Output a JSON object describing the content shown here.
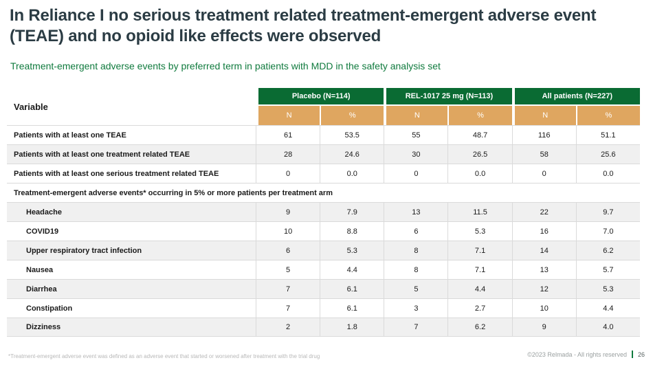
{
  "slide": {
    "title": "In Reliance I no serious treatment related treatment-emergent adverse event (TEAE) and no opioid like effects were observed",
    "subtitle": "Treatment-emergent adverse events by preferred term in patients with MDD in the safety analysis set"
  },
  "table": {
    "variable_header": "Variable",
    "groups": [
      {
        "label": "Placebo (N=114)"
      },
      {
        "label": "REL-1017 25 mg (N=113)"
      },
      {
        "label": "All patients (N=227)"
      }
    ],
    "subheaders": [
      "N",
      "%"
    ],
    "rows": [
      {
        "type": "data",
        "indent": false,
        "shaded": false,
        "label": "Patients with at least one TEAE",
        "values": [
          "61",
          "53.5",
          "55",
          "48.7",
          "116",
          "51.1"
        ]
      },
      {
        "type": "data",
        "indent": false,
        "shaded": true,
        "label": "Patients with at least one treatment related TEAE",
        "values": [
          "28",
          "24.6",
          "30",
          "26.5",
          "58",
          "25.6"
        ]
      },
      {
        "type": "data",
        "indent": false,
        "shaded": false,
        "label": "Patients with at least one serious treatment related TEAE",
        "values": [
          "0",
          "0.0",
          "0",
          "0.0",
          "0",
          "0.0"
        ]
      },
      {
        "type": "section",
        "indent": false,
        "shaded": false,
        "label": "Treatment-emergent adverse events* occurring in 5% or more patients per treatment arm",
        "values": []
      },
      {
        "type": "data",
        "indent": true,
        "shaded": true,
        "label": "Headache",
        "values": [
          "9",
          "7.9",
          "13",
          "11.5",
          "22",
          "9.7"
        ]
      },
      {
        "type": "data",
        "indent": true,
        "shaded": false,
        "label": "COVID19",
        "values": [
          "10",
          "8.8",
          "6",
          "5.3",
          "16",
          "7.0"
        ]
      },
      {
        "type": "data",
        "indent": true,
        "shaded": true,
        "label": "Upper respiratory tract infection",
        "values": [
          "6",
          "5.3",
          "8",
          "7.1",
          "14",
          "6.2"
        ]
      },
      {
        "type": "data",
        "indent": true,
        "shaded": false,
        "label": "Nausea",
        "values": [
          "5",
          "4.4",
          "8",
          "7.1",
          "13",
          "5.7"
        ]
      },
      {
        "type": "data",
        "indent": true,
        "shaded": true,
        "label": "Diarrhea",
        "values": [
          "7",
          "6.1",
          "5",
          "4.4",
          "12",
          "5.3"
        ]
      },
      {
        "type": "data",
        "indent": true,
        "shaded": false,
        "label": "Constipation",
        "values": [
          "7",
          "6.1",
          "3",
          "2.7",
          "10",
          "4.4"
        ]
      },
      {
        "type": "data",
        "indent": true,
        "shaded": true,
        "label": "Dizziness",
        "values": [
          "2",
          "1.8",
          "7",
          "6.2",
          "9",
          "4.0"
        ]
      }
    ]
  },
  "footer": {
    "footnote": "*Treatment-emergent adverse event was defined as an adverse event that started or worsened after treatment with the trial drug",
    "copyright": "©2023 Relmada - All rights reserved",
    "page_number": "26"
  },
  "colors": {
    "header_green": "#0a6b33",
    "subheader_tan": "#dfa660",
    "title_dark": "#2b3c44",
    "subtitle_green": "#0f7a3d",
    "row_alt_gray": "#f0f0f0"
  }
}
